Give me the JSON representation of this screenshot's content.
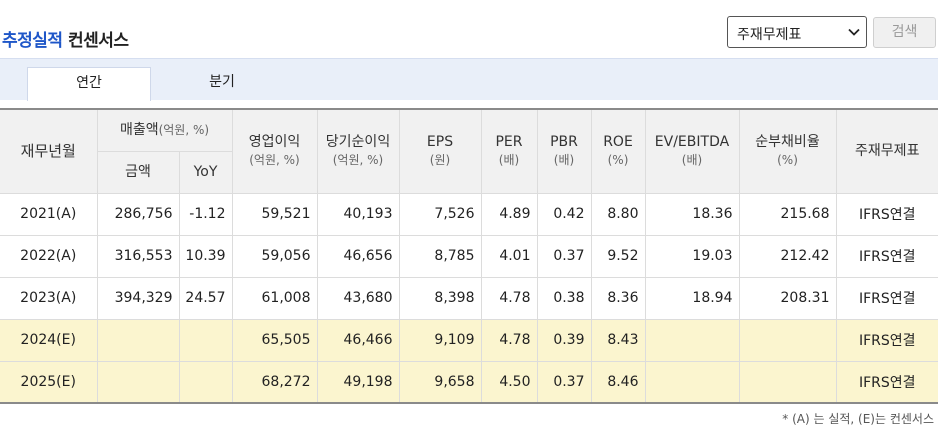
{
  "title": {
    "highlight": "추정실적",
    "rest": "컨센서스"
  },
  "controls": {
    "select_value": "주재무제표",
    "search_label": "검색"
  },
  "tabs": [
    {
      "label": "연간",
      "active": true
    },
    {
      "label": "분기",
      "active": false
    }
  ],
  "table": {
    "headers": {
      "period": "재무년월",
      "sales": "매출액",
      "sales_unit": "(억원, %)",
      "amount": "금액",
      "yoy": "YoY",
      "op": "영업이익",
      "op_unit": "(억원, %)",
      "net": "당기순이익",
      "net_unit": "(억원, %)",
      "eps": "EPS",
      "eps_unit": "(원)",
      "per": "PER",
      "per_unit": "(배)",
      "pbr": "PBR",
      "pbr_unit": "(배)",
      "roe": "ROE",
      "roe_unit": "(%)",
      "ev": "EV/EBITDA",
      "ev_unit": "(배)",
      "debt": "순부채비율",
      "debt_unit": "(%)",
      "stmt": "주재무제표"
    },
    "rows": [
      {
        "period": "2021(A)",
        "amount": "286,756",
        "yoy": "-1.12",
        "op": "59,521",
        "net": "40,193",
        "eps": "7,526",
        "per": "4.89",
        "pbr": "0.42",
        "roe": "8.80",
        "ev": "18.36",
        "debt": "215.68",
        "stmt": "IFRS연결"
      },
      {
        "period": "2022(A)",
        "amount": "316,553",
        "yoy": "10.39",
        "op": "59,056",
        "net": "46,656",
        "eps": "8,785",
        "per": "4.01",
        "pbr": "0.37",
        "roe": "9.52",
        "ev": "19.03",
        "debt": "212.42",
        "stmt": "IFRS연결"
      },
      {
        "period": "2023(A)",
        "amount": "394,329",
        "yoy": "24.57",
        "op": "61,008",
        "net": "43,680",
        "eps": "8,398",
        "per": "4.78",
        "pbr": "0.38",
        "roe": "8.36",
        "ev": "18.94",
        "debt": "208.31",
        "stmt": "IFRS연결"
      },
      {
        "period": "2024(E)",
        "amount": "",
        "yoy": "",
        "op": "65,505",
        "net": "46,466",
        "eps": "9,109",
        "per": "4.78",
        "pbr": "0.39",
        "roe": "8.43",
        "ev": "",
        "debt": "",
        "stmt": "IFRS연결"
      },
      {
        "period": "2025(E)",
        "amount": "",
        "yoy": "",
        "op": "68,272",
        "net": "49,198",
        "eps": "9,658",
        "per": "4.50",
        "pbr": "0.37",
        "roe": "8.46",
        "ev": "",
        "debt": "",
        "stmt": "IFRS연결"
      }
    ]
  },
  "footnote": "* (A) 는 실적, (E)는 컨센서스",
  "colors": {
    "accent": "#1e56c8",
    "negative": "#d3281f",
    "estimate_row": "#fbf5cf",
    "tabbar": "#e9eff9"
  },
  "icons": {
    "select_arrow": "chevron-down-icon"
  }
}
